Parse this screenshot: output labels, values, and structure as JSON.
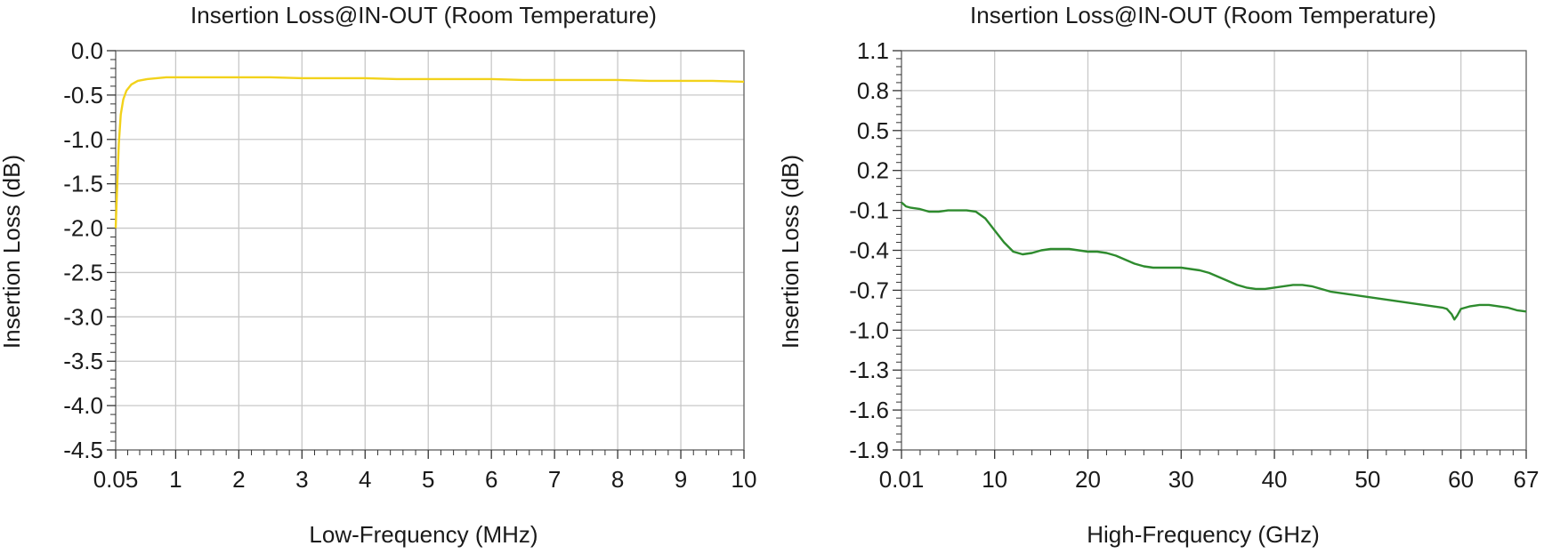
{
  "colors": {
    "left_trace": "#f2d21b",
    "right_trace": "#2e8b2e",
    "grid": "#c8c8c8",
    "frame": "#666666"
  },
  "chart_data": [
    {
      "type": "line",
      "title": "Insertion Loss@IN-OUT (Room Temperature)",
      "xlabel": "Low-Frequency (MHz)",
      "ylabel": "Insertion Loss (dB)",
      "xlim": [
        0.05,
        10
      ],
      "ylim": [
        -4.5,
        0.0
      ],
      "xticks": [
        0.05,
        1,
        2,
        3,
        4,
        5,
        6,
        7,
        8,
        9,
        10
      ],
      "xtick_labels": [
        "0.05",
        "1",
        "2",
        "3",
        "4",
        "5",
        "6",
        "7",
        "8",
        "9",
        "10"
      ],
      "yticks": [
        0.0,
        -0.5,
        -1.0,
        -1.5,
        -2.0,
        -2.5,
        -3.0,
        -3.5,
        -4.0,
        -4.5
      ],
      "ytick_labels": [
        "0.0",
        "-0.5",
        "-1.0",
        "-1.5",
        "-2.0",
        "-2.5",
        "-3.0",
        "-3.5",
        "-4.0",
        "-4.5"
      ],
      "grid": true,
      "series": [
        {
          "color": "#f2d21b",
          "x": [
            0.05,
            0.07,
            0.1,
            0.13,
            0.17,
            0.22,
            0.3,
            0.4,
            0.55,
            0.7,
            0.85,
            1.0,
            1.5,
            2.0,
            2.5,
            3.0,
            3.5,
            4.0,
            4.5,
            5.0,
            5.5,
            6.0,
            6.5,
            7.0,
            7.5,
            8.0,
            8.5,
            9.0,
            9.5,
            10.0
          ],
          "y": [
            -2.0,
            -1.6,
            -1.05,
            -0.72,
            -0.55,
            -0.45,
            -0.38,
            -0.34,
            -0.32,
            -0.31,
            -0.3,
            -0.3,
            -0.3,
            -0.3,
            -0.3,
            -0.31,
            -0.31,
            -0.31,
            -0.32,
            -0.32,
            -0.32,
            -0.32,
            -0.33,
            -0.33,
            -0.33,
            -0.33,
            -0.34,
            -0.34,
            -0.34,
            -0.35
          ]
        }
      ]
    },
    {
      "type": "line",
      "title": "Insertion Loss@IN-OUT (Room Temperature)",
      "xlabel": "High-Frequency (GHz)",
      "ylabel": "Insertion Loss (dB)",
      "xlim": [
        0.01,
        67
      ],
      "ylim": [
        -1.9,
        1.1
      ],
      "xticks": [
        0.01,
        10,
        20,
        30,
        40,
        50,
        60,
        67
      ],
      "xtick_labels": [
        "0.01",
        "10",
        "20",
        "30",
        "40",
        "50",
        "60",
        "67"
      ],
      "yticks": [
        1.1,
        0.8,
        0.5,
        0.2,
        -0.1,
        -0.4,
        -0.7,
        -1.0,
        -1.3,
        -1.6,
        -1.9
      ],
      "ytick_labels": [
        "1.1",
        "0.8",
        "0.5",
        "0.2",
        "-0.1",
        "-0.4",
        "-0.7",
        "-1.0",
        "-1.3",
        "-1.6",
        "-1.9"
      ],
      "grid": true,
      "series": [
        {
          "color": "#2e8b2e",
          "x": [
            0.01,
            0.5,
            1,
            2,
            3,
            4,
            5,
            6,
            7,
            8,
            9,
            10,
            11,
            12,
            13,
            14,
            15,
            16,
            17,
            18,
            19,
            20,
            21,
            22,
            23,
            24,
            25,
            26,
            27,
            28,
            29,
            30,
            31,
            32,
            33,
            34,
            35,
            36,
            37,
            38,
            39,
            40,
            41,
            42,
            43,
            44,
            45,
            46,
            47,
            48,
            49,
            50,
            51,
            52,
            53,
            54,
            55,
            56,
            57,
            58,
            58.5,
            59,
            59.3,
            59.6,
            60,
            61,
            62,
            63,
            64,
            65,
            66,
            67
          ],
          "y": [
            -0.04,
            -0.07,
            -0.08,
            -0.09,
            -0.11,
            -0.11,
            -0.1,
            -0.1,
            -0.1,
            -0.11,
            -0.16,
            -0.25,
            -0.34,
            -0.41,
            -0.43,
            -0.42,
            -0.4,
            -0.39,
            -0.39,
            -0.39,
            -0.4,
            -0.41,
            -0.41,
            -0.42,
            -0.44,
            -0.47,
            -0.5,
            -0.52,
            -0.53,
            -0.53,
            -0.53,
            -0.53,
            -0.54,
            -0.55,
            -0.57,
            -0.6,
            -0.63,
            -0.66,
            -0.68,
            -0.69,
            -0.69,
            -0.68,
            -0.67,
            -0.66,
            -0.66,
            -0.67,
            -0.69,
            -0.71,
            -0.72,
            -0.73,
            -0.74,
            -0.75,
            -0.76,
            -0.77,
            -0.78,
            -0.79,
            -0.8,
            -0.81,
            -0.82,
            -0.83,
            -0.84,
            -0.88,
            -0.92,
            -0.89,
            -0.84,
            -0.82,
            -0.81,
            -0.81,
            -0.82,
            -0.83,
            -0.85,
            -0.86
          ]
        }
      ]
    }
  ]
}
